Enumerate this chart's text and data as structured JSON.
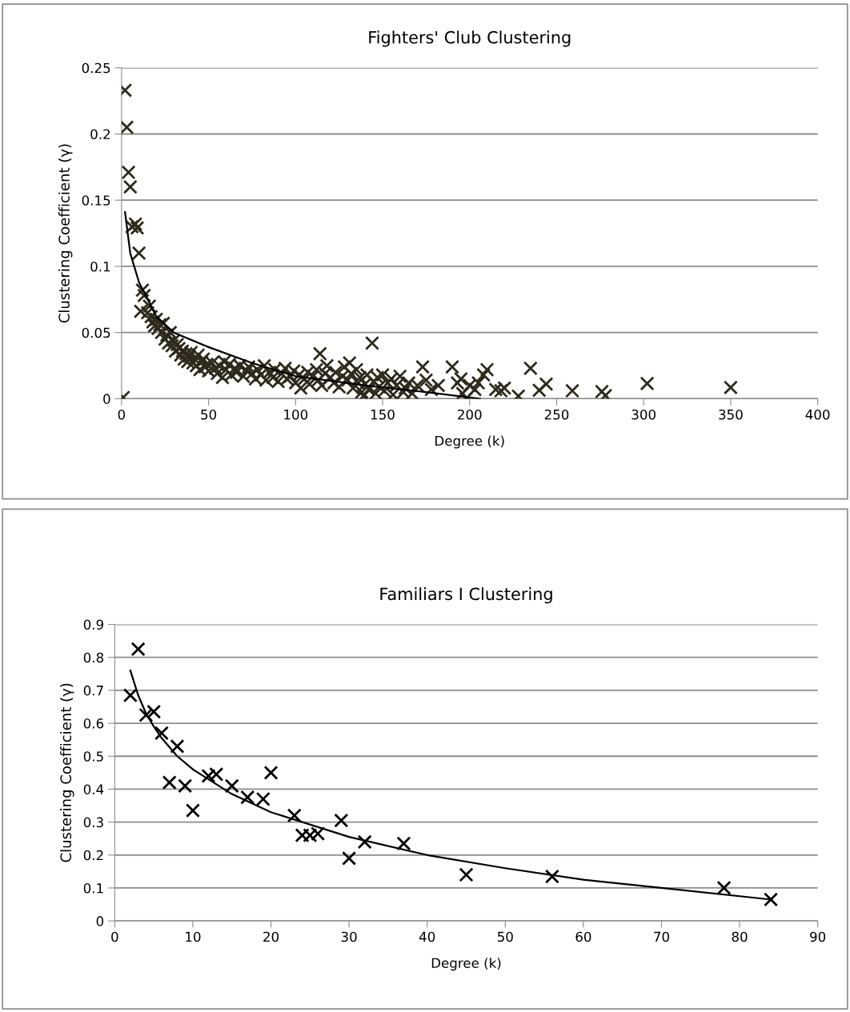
{
  "chart_data": [
    {
      "type": "scatter",
      "title": "Fighters' Club Clustering",
      "xlabel": "Degree (k)",
      "ylabel": "Clustering Coefficient (γ)",
      "xlim": [
        0,
        400
      ],
      "xticks": [
        0,
        50,
        100,
        150,
        200,
        250,
        300,
        350,
        400
      ],
      "ylim": [
        0,
        0.25
      ],
      "yticks": [
        0,
        0.05,
        0.1,
        0.15,
        0.2,
        0.25
      ],
      "grid": "y",
      "legend": false,
      "marker": "cross",
      "series": [
        {
          "color": "#2e2a1c",
          "x": [
            1,
            2,
            3,
            4,
            5,
            6,
            8,
            9,
            10,
            11,
            12,
            13,
            15,
            16,
            17,
            18,
            19,
            20,
            21,
            22,
            23,
            24,
            25,
            26,
            27,
            28,
            29,
            30,
            31,
            32,
            33,
            34,
            35,
            36,
            37,
            38,
            39,
            40,
            41,
            42,
            43,
            44,
            45,
            46,
            47,
            48,
            49,
            50,
            52,
            54,
            55,
            56,
            58,
            59,
            60,
            62,
            63,
            65,
            66,
            68,
            70,
            72,
            73,
            75,
            77,
            78,
            80,
            82,
            83,
            85,
            87,
            88,
            90,
            92,
            94,
            95,
            97,
            99,
            100,
            102,
            103,
            105,
            107,
            108,
            110,
            112,
            113,
            114,
            115,
            117,
            118,
            120,
            122,
            123,
            125,
            127,
            128,
            130,
            131,
            132,
            133,
            135,
            136,
            137,
            138,
            139,
            140,
            141,
            142,
            144,
            145,
            146,
            147,
            148,
            150,
            151,
            153,
            155,
            156,
            158,
            160,
            162,
            163,
            165,
            167,
            170,
            173,
            175,
            178,
            182,
            190,
            193,
            195,
            196,
            198,
            200,
            203,
            205,
            208,
            210,
            215,
            218,
            220,
            228,
            235,
            240,
            244,
            259,
            276,
            278,
            302,
            350
          ],
          "values": [
            0.001,
            0.233,
            0.205,
            0.171,
            0.16,
            0.13,
            0.132,
            0.129,
            0.11,
            0.066,
            0.082,
            0.078,
            0.065,
            0.07,
            0.062,
            0.058,
            0.055,
            0.06,
            0.053,
            0.056,
            0.05,
            0.057,
            0.045,
            0.048,
            0.042,
            0.05,
            0.04,
            0.044,
            0.036,
            0.041,
            0.038,
            0.033,
            0.036,
            0.03,
            0.034,
            0.028,
            0.032,
            0.035,
            0.027,
            0.03,
            0.025,
            0.033,
            0.022,
            0.028,
            0.03,
            0.024,
            0.026,
            0.021,
            0.027,
            0.023,
            0.019,
            0.025,
            0.016,
            0.028,
            0.022,
            0.026,
            0.018,
            0.023,
            0.02,
            0.025,
            0.017,
            0.021,
            0.024,
            0.019,
            0.015,
            0.022,
            0.018,
            0.025,
            0.014,
            0.02,
            0.016,
            0.022,
            0.013,
            0.019,
            0.023,
            0.015,
            0.017,
            0.021,
            0.012,
            0.018,
            0.008,
            0.015,
            0.02,
            0.011,
            0.017,
            0.022,
            0.014,
            0.034,
            0.01,
            0.019,
            0.025,
            0.016,
            0.012,
            0.02,
            0.009,
            0.017,
            0.024,
            0.014,
            0.027,
            0.019,
            0.008,
            0.022,
            0.012,
            0.016,
            0.005,
            0.002,
            0.011,
            0.018,
            0.007,
            0.042,
            0.013,
            0.004,
            0.016,
            0.009,
            0.018,
            0.006,
            0.012,
            0.015,
            0.003,
            0.01,
            0.017,
            0.005,
            0.008,
            0.012,
            0.004,
            0.01,
            0.024,
            0.014,
            0.007,
            0.01,
            0.024,
            0.012,
            0.015,
            0.004,
            0.0,
            0.01,
            0.007,
            0.012,
            0.018,
            0.022,
            0.007,
            0.006,
            0.008,
            0.002,
            0.023,
            0.0064,
            0.011,
            0.006,
            0.0054,
            0.0024,
            0.0115,
            0.0085
          ]
        },
        {
          "type": "line",
          "color": "#000000",
          "marker": "none",
          "x": [
            2,
            5,
            10,
            20,
            30,
            50,
            75,
            100,
            125,
            142,
            175,
            206
          ],
          "values": [
            0.141,
            0.11,
            0.088,
            0.062,
            0.05,
            0.039,
            0.027,
            0.017,
            0.0127,
            0.0097,
            0.005,
            0.0
          ]
        }
      ]
    },
    {
      "type": "scatter",
      "title": "Familiars I Clustering",
      "xlabel": "Degree (k)",
      "ylabel": "Clustering Coefficient (γ)",
      "xlim": [
        0,
        90
      ],
      "xticks": [
        0,
        10,
        20,
        30,
        40,
        50,
        60,
        70,
        80,
        90
      ],
      "ylim": [
        0,
        0.9
      ],
      "yticks": [
        0,
        0.1,
        0.2,
        0.3,
        0.4,
        0.5,
        0.6,
        0.7,
        0.8,
        0.9
      ],
      "grid": "y",
      "legend": false,
      "marker": "cross",
      "series": [
        {
          "color": "#000000",
          "x": [
            2,
            3,
            4,
            5,
            6,
            7,
            8,
            9,
            10,
            12,
            13,
            15,
            17,
            19,
            20,
            23,
            24,
            25,
            26,
            29,
            30,
            32,
            37,
            45,
            56,
            78,
            84
          ],
          "values": [
            0.685,
            0.825,
            0.625,
            0.635,
            0.57,
            0.42,
            0.53,
            0.41,
            0.335,
            0.44,
            0.445,
            0.41,
            0.375,
            0.37,
            0.45,
            0.32,
            0.26,
            0.26,
            0.265,
            0.305,
            0.19,
            0.24,
            0.235,
            0.14,
            0.135,
            0.1,
            0.065
          ]
        },
        {
          "type": "line",
          "color": "#000000",
          "marker": "none",
          "x": [
            2,
            3,
            4,
            5,
            6,
            8,
            10,
            15,
            20,
            30,
            40,
            50,
            60,
            70,
            84
          ],
          "values": [
            0.76,
            0.685,
            0.63,
            0.59,
            0.555,
            0.5,
            0.46,
            0.385,
            0.33,
            0.255,
            0.2,
            0.16,
            0.125,
            0.1,
            0.065
          ]
        }
      ]
    }
  ]
}
